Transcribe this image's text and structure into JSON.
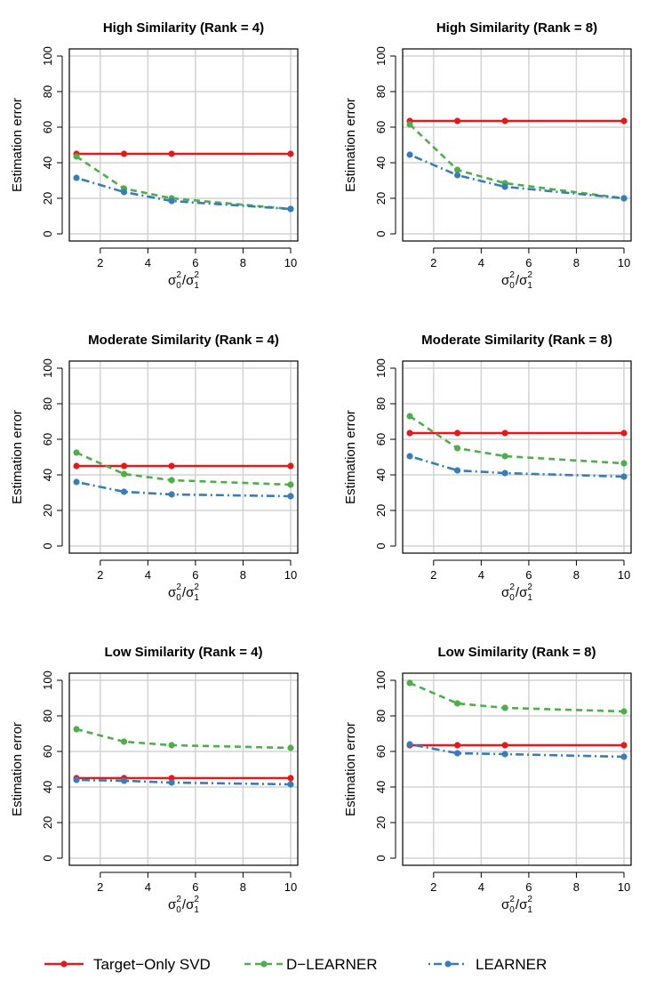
{
  "chart_data": [
    {
      "type": "line",
      "title": "High Similarity (Rank = 4)",
      "xlabel": "σ0²/σ1²",
      "ylabel": "Estimation error",
      "xlim": [
        0.7,
        10.3
      ],
      "ylim": [
        -4,
        104
      ],
      "xticks": [
        2,
        4,
        6,
        8,
        10
      ],
      "yticks": [
        0,
        20,
        40,
        60,
        80,
        100
      ],
      "grid": true,
      "x": [
        1,
        3,
        5,
        10
      ],
      "series": [
        {
          "name": "Target−Only SVD",
          "values": [
            45,
            45,
            45,
            45
          ]
        },
        {
          "name": "D−LEARNER",
          "values": [
            43.5,
            25.5,
            20,
            14
          ]
        },
        {
          "name": "LEARNER",
          "values": [
            31.5,
            23.5,
            18.5,
            14
          ]
        }
      ]
    },
    {
      "type": "line",
      "title": "High Similarity (Rank = 8)",
      "xlabel": "σ0²/σ1²",
      "ylabel": "Estimation error",
      "xlim": [
        0.7,
        10.3
      ],
      "ylim": [
        -4,
        104
      ],
      "xticks": [
        2,
        4,
        6,
        8,
        10
      ],
      "yticks": [
        0,
        20,
        40,
        60,
        80,
        100
      ],
      "grid": true,
      "x": [
        1,
        3,
        5,
        10
      ],
      "series": [
        {
          "name": "Target−Only SVD",
          "values": [
            63.5,
            63.5,
            63.5,
            63.5
          ]
        },
        {
          "name": "D−LEARNER",
          "values": [
            61.5,
            36,
            28.5,
            20
          ]
        },
        {
          "name": "LEARNER",
          "values": [
            44.5,
            33,
            26.5,
            20
          ]
        }
      ]
    },
    {
      "type": "line",
      "title": "Moderate Similarity (Rank = 4)",
      "xlabel": "σ0²/σ1²",
      "ylabel": "Estimation error",
      "xlim": [
        0.7,
        10.3
      ],
      "ylim": [
        -4,
        104
      ],
      "xticks": [
        2,
        4,
        6,
        8,
        10
      ],
      "yticks": [
        0,
        20,
        40,
        60,
        80,
        100
      ],
      "grid": true,
      "x": [
        1,
        3,
        5,
        10
      ],
      "series": [
        {
          "name": "Target−Only SVD",
          "values": [
            45,
            45,
            45,
            45
          ]
        },
        {
          "name": "D−LEARNER",
          "values": [
            52.5,
            40.5,
            37,
            34.5
          ]
        },
        {
          "name": "LEARNER",
          "values": [
            36,
            30.5,
            29,
            28
          ]
        }
      ]
    },
    {
      "type": "line",
      "title": "Moderate Similarity (Rank = 8)",
      "xlabel": "σ0²/σ1²",
      "ylabel": "Estimation error",
      "xlim": [
        0.7,
        10.3
      ],
      "ylim": [
        -4,
        104
      ],
      "xticks": [
        2,
        4,
        6,
        8,
        10
      ],
      "yticks": [
        0,
        20,
        40,
        60,
        80,
        100
      ],
      "grid": true,
      "x": [
        1,
        3,
        5,
        10
      ],
      "series": [
        {
          "name": "Target−Only SVD",
          "values": [
            63.5,
            63.5,
            63.5,
            63.5
          ]
        },
        {
          "name": "D−LEARNER",
          "values": [
            73,
            55,
            50.5,
            46.5
          ]
        },
        {
          "name": "LEARNER",
          "values": [
            50.5,
            42.5,
            41,
            39
          ]
        }
      ]
    },
    {
      "type": "line",
      "title": "Low Similarity (Rank = 4)",
      "xlabel": "σ0²/σ1²",
      "ylabel": "Estimation error",
      "xlim": [
        0.7,
        10.3
      ],
      "ylim": [
        -4,
        104
      ],
      "xticks": [
        2,
        4,
        6,
        8,
        10
      ],
      "yticks": [
        0,
        20,
        40,
        60,
        80,
        100
      ],
      "grid": true,
      "x": [
        1,
        3,
        5,
        10
      ],
      "series": [
        {
          "name": "Target−Only SVD",
          "values": [
            45,
            45,
            45,
            45
          ]
        },
        {
          "name": "D−LEARNER",
          "values": [
            72.5,
            65.5,
            63.5,
            62
          ]
        },
        {
          "name": "LEARNER",
          "values": [
            44,
            43.5,
            42.5,
            41.5
          ]
        }
      ]
    },
    {
      "type": "line",
      "title": "Low Similarity (Rank = 8)",
      "xlabel": "σ0²/σ1²",
      "ylabel": "Estimation error",
      "xlim": [
        0.7,
        10.3
      ],
      "ylim": [
        -4,
        104
      ],
      "xticks": [
        2,
        4,
        6,
        8,
        10
      ],
      "yticks": [
        0,
        20,
        40,
        60,
        80,
        100
      ],
      "grid": true,
      "x": [
        1,
        3,
        5,
        10
      ],
      "series": [
        {
          "name": "Target−Only SVD",
          "values": [
            63.5,
            63.5,
            63.5,
            63.5
          ]
        },
        {
          "name": "D−LEARNER",
          "values": [
            98.5,
            87,
            84.5,
            82.5
          ]
        },
        {
          "name": "LEARNER",
          "values": [
            64,
            59,
            58.5,
            57
          ]
        }
      ]
    }
  ],
  "legend": {
    "placement": "bottom",
    "entries": [
      {
        "label": "Target−Only SVD",
        "color": "#E31A1C",
        "dash": "solid"
      },
      {
        "label": "D−LEARNER",
        "color": "#4DAF4A",
        "dash": "dashed"
      },
      {
        "label": "LEARNER",
        "color": "#377EB8",
        "dash": "dotdash"
      }
    ]
  },
  "series_styles": [
    {
      "color": "#E31A1C",
      "dash": "solid"
    },
    {
      "color": "#4DAF4A",
      "dash": "dashed"
    },
    {
      "color": "#377EB8",
      "dash": "dotdash"
    }
  ]
}
